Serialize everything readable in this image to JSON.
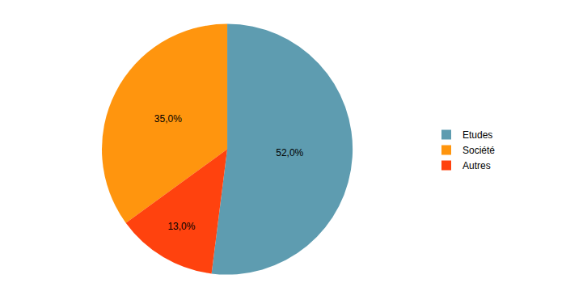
{
  "chart_data": {
    "type": "pie",
    "categories": [
      "Etudes",
      "Société",
      "Autres"
    ],
    "values": [
      52,
      35,
      13
    ],
    "value_labels": [
      "52,0%",
      "35,0%",
      "13,0%"
    ],
    "colors": [
      "#5e9cb0",
      "#ff950e",
      "#ff420e"
    ],
    "data_labels": true,
    "legend": "right"
  }
}
